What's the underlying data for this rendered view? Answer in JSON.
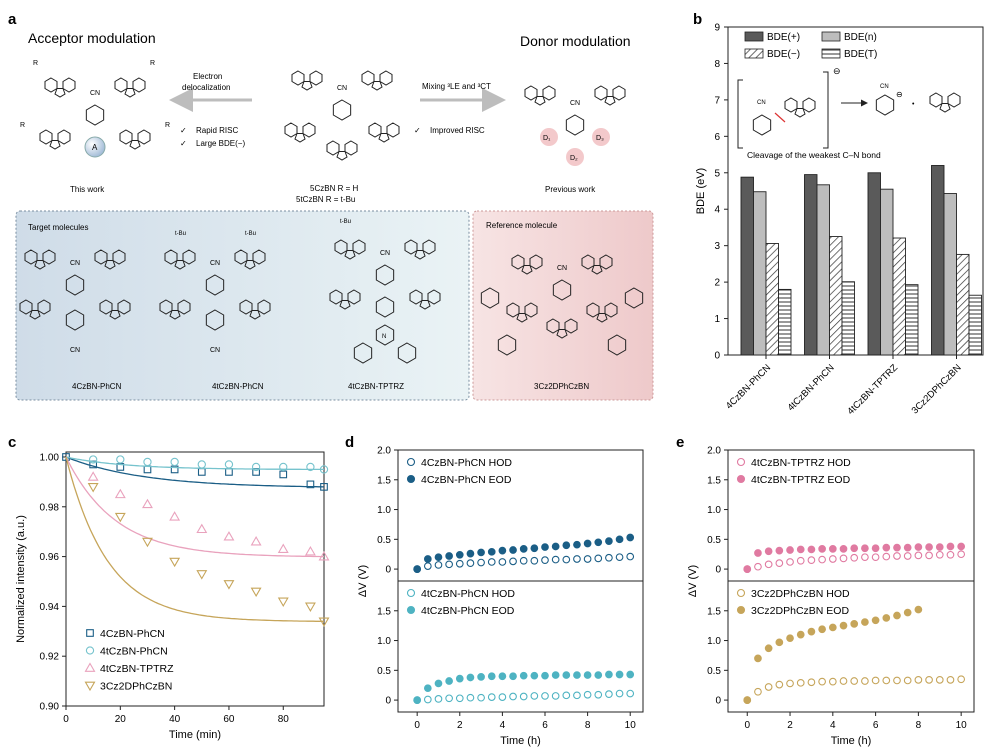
{
  "colors": {
    "blue": "#1b5e86",
    "cyan": "#4eb3c2",
    "pink": "#e07aa1",
    "gold": "#c6a55a",
    "dark": "#5a5a5a",
    "mid": "#bdbdbd",
    "targetBg": "#e4ecf2",
    "refBg": "#f4d9da",
    "pinkCircle": "#f3c9cb",
    "lightCyan": "#76c3cd",
    "lightPink": "#e9a2bd"
  },
  "panel_a": {
    "label": "a",
    "acceptor_title": "Acceptor modulation",
    "donor_title": "Donor modulation",
    "arrow_left_text": [
      "Electron",
      "delocalization"
    ],
    "arrow_right_text": "Mixing ³LE and ³CT",
    "left_bullets": [
      "Rapid RISC",
      "Large BDE(−)"
    ],
    "right_bullets": [
      "Improved RISC"
    ],
    "check": "✓",
    "this_work": "This work",
    "previous_work": "Previous work",
    "center_name1": "5CzBN  R = H",
    "center_name2": "5tCzBN R = t-Bu",
    "acceptor_label": "A",
    "donor_labels": [
      "D₁",
      "D₂",
      "D₃"
    ],
    "group_cn": "CN",
    "group_r": "R",
    "group_n": "N",
    "group_tbu": "t-Bu",
    "target_title": "Target molecules",
    "reference_title": "Reference molecule",
    "molecules": [
      "4CzBN-PhCN",
      "4tCzBN-PhCN",
      "4tCzBN-TPTRZ",
      "3Cz2DPhCzBN"
    ]
  },
  "panel_b": {
    "label": "b",
    "inset_caption": "Cleavage of the weakest C–N bond",
    "minus_sign": "⊖",
    "plus_sign": "•"
  },
  "panel_c": {
    "label": "c"
  },
  "panel_d": {
    "label": "d"
  },
  "panel_e": {
    "label": "e"
  },
  "chart_data": [
    {
      "panel": "b",
      "type": "bar",
      "ylabel": "BDE (eV)",
      "ylim": [
        0,
        9
      ],
      "yticks": [
        0,
        1,
        2,
        3,
        4,
        5,
        6,
        7,
        8,
        9
      ],
      "categories": [
        "4CzBN-PhCN",
        "4tCzBN-PhCN",
        "4tCzBN-TPTRZ",
        "3Cz2DPhCzBN"
      ],
      "series": [
        {
          "name": "BDE(+)",
          "values": [
            4.88,
            4.95,
            5.0,
            5.2
          ]
        },
        {
          "name": "BDE(n)",
          "values": [
            4.48,
            4.67,
            4.55,
            4.43
          ]
        },
        {
          "name": "BDE(−)",
          "values": [
            3.06,
            3.25,
            3.21,
            2.76
          ]
        },
        {
          "name": "BDE(T)",
          "values": [
            1.8,
            2.01,
            1.93,
            1.64
          ]
        }
      ],
      "legend": "top"
    },
    {
      "panel": "c",
      "type": "scatter",
      "xlabel": "Time (min)",
      "ylabel": "Normalized intensity (a.u.)",
      "xlim": [
        0,
        95
      ],
      "ylim": [
        0.9,
        1.002
      ],
      "xticks": [
        0,
        20,
        40,
        60,
        80
      ],
      "yticks": [
        0.9,
        0.92,
        0.94,
        0.96,
        0.98,
        1.0
      ],
      "ytick_labels": [
        "0.90",
        "0.92",
        "0.94",
        "0.96",
        "0.98",
        "1.00"
      ],
      "x": [
        0,
        10,
        20,
        30,
        40,
        50,
        60,
        70,
        80,
        90,
        95
      ],
      "series": [
        {
          "name": "4CzBN-PhCN",
          "marker": "square",
          "values": [
            1.0,
            0.997,
            0.996,
            0.995,
            0.995,
            0.994,
            0.994,
            0.994,
            0.993,
            0.989,
            0.988
          ]
        },
        {
          "name": "4tCzBN-PhCN",
          "marker": "circle",
          "values": [
            1.0,
            0.999,
            0.999,
            0.998,
            0.998,
            0.997,
            0.997,
            0.996,
            0.996,
            0.996,
            0.995
          ]
        },
        {
          "name": "4tCzBN-TPTRZ",
          "marker": "triangle-up",
          "values": [
            1.0,
            0.992,
            0.985,
            0.981,
            0.976,
            0.971,
            0.968,
            0.966,
            0.963,
            0.962,
            0.96
          ]
        },
        {
          "name": "3Cz2DPhCzBN",
          "marker": "triangle-down",
          "values": [
            1.0,
            0.988,
            0.976,
            0.966,
            0.958,
            0.953,
            0.949,
            0.946,
            0.942,
            0.94,
            0.934
          ]
        }
      ]
    },
    {
      "panel": "d",
      "type": "scatter",
      "xlabel": "Time (h)",
      "ylabel": "ΔV (V)",
      "subplots": [
        {
          "ylim": [
            -0.2,
            2.0
          ],
          "yticks": [
            0,
            0.5,
            1.0,
            1.5,
            2.0
          ],
          "ytick_labels": [
            "0",
            "0.5",
            "1.0",
            "1.5",
            "2.0"
          ],
          "series": [
            {
              "name": "4CzBN-PhCN HOD",
              "filled": false,
              "x": [
                0,
                0.5,
                1,
                1.5,
                2,
                2.5,
                3,
                3.5,
                4,
                4.5,
                5,
                5.5,
                6,
                6.5,
                7,
                7.5,
                8,
                8.5,
                9,
                9.5,
                10
              ],
              "values": [
                0,
                0.05,
                0.07,
                0.08,
                0.09,
                0.1,
                0.11,
                0.12,
                0.12,
                0.13,
                0.14,
                0.14,
                0.15,
                0.16,
                0.16,
                0.17,
                0.17,
                0.18,
                0.19,
                0.2,
                0.21
              ]
            },
            {
              "name": "4CzBN-PhCN EOD",
              "filled": true,
              "x": [
                0,
                0.5,
                1,
                1.5,
                2,
                2.5,
                3,
                3.5,
                4,
                4.5,
                5,
                5.5,
                6,
                6.5,
                7,
                7.5,
                8,
                8.5,
                9,
                9.5,
                10
              ],
              "values": [
                0,
                0.17,
                0.2,
                0.22,
                0.24,
                0.26,
                0.28,
                0.29,
                0.31,
                0.32,
                0.34,
                0.35,
                0.37,
                0.38,
                0.4,
                0.41,
                0.43,
                0.45,
                0.47,
                0.5,
                0.53
              ]
            }
          ]
        },
        {
          "ylim": [
            -0.2,
            2.0
          ],
          "yticks": [
            0,
            0.5,
            1.0,
            1.5
          ],
          "ytick_labels": [
            "0",
            "0.5",
            "1.0",
            "1.5"
          ],
          "series": [
            {
              "name": "4tCzBN-PhCN HOD",
              "filled": false,
              "x": [
                0,
                0.5,
                1,
                1.5,
                2,
                2.5,
                3,
                3.5,
                4,
                4.5,
                5,
                5.5,
                6,
                6.5,
                7,
                7.5,
                8,
                8.5,
                9,
                9.5,
                10
              ],
              "values": [
                0,
                0.01,
                0.02,
                0.03,
                0.03,
                0.04,
                0.04,
                0.05,
                0.05,
                0.06,
                0.06,
                0.07,
                0.07,
                0.07,
                0.08,
                0.08,
                0.09,
                0.09,
                0.1,
                0.11,
                0.11
              ]
            },
            {
              "name": "4tCzBN-PhCN EOD",
              "filled": true,
              "x": [
                0,
                0.5,
                1,
                1.5,
                2,
                2.5,
                3,
                3.5,
                4,
                4.5,
                5,
                5.5,
                6,
                6.5,
                7,
                7.5,
                8,
                8.5,
                9,
                9.5,
                10
              ],
              "values": [
                0,
                0.2,
                0.28,
                0.32,
                0.36,
                0.38,
                0.39,
                0.4,
                0.4,
                0.4,
                0.41,
                0.41,
                0.41,
                0.42,
                0.42,
                0.42,
                0.42,
                0.42,
                0.43,
                0.43,
                0.43
              ]
            }
          ]
        }
      ],
      "xlim": [
        -0.9,
        10.6
      ],
      "xticks": [
        0,
        2,
        4,
        6,
        8,
        10
      ]
    },
    {
      "panel": "e",
      "type": "scatter",
      "xlabel": "Time (h)",
      "ylabel": "ΔV (V)",
      "subplots": [
        {
          "ylim": [
            -0.2,
            2.0
          ],
          "yticks": [
            0,
            0.5,
            1.0,
            1.5,
            2.0
          ],
          "ytick_labels": [
            "0",
            "0.5",
            "1.0",
            "1.5",
            "2.0"
          ],
          "series": [
            {
              "name": "4tCzBN-TPTRZ HOD",
              "filled": false,
              "x": [
                0,
                0.5,
                1,
                1.5,
                2,
                2.5,
                3,
                3.5,
                4,
                4.5,
                5,
                5.5,
                6,
                6.5,
                7,
                7.5,
                8,
                8.5,
                9,
                9.5,
                10
              ],
              "values": [
                0,
                0.04,
                0.08,
                0.1,
                0.12,
                0.14,
                0.15,
                0.16,
                0.17,
                0.18,
                0.19,
                0.2,
                0.2,
                0.21,
                0.22,
                0.22,
                0.23,
                0.23,
                0.24,
                0.24,
                0.25
              ]
            },
            {
              "name": "4tCzBN-TPTRZ EOD",
              "filled": true,
              "x": [
                0,
                0.5,
                1,
                1.5,
                2,
                2.5,
                3,
                3.5,
                4,
                4.5,
                5,
                5.5,
                6,
                6.5,
                7,
                7.5,
                8,
                8.5,
                9,
                9.5,
                10
              ],
              "values": [
                0,
                0.27,
                0.3,
                0.31,
                0.32,
                0.33,
                0.33,
                0.34,
                0.34,
                0.34,
                0.35,
                0.35,
                0.35,
                0.36,
                0.36,
                0.36,
                0.37,
                0.37,
                0.37,
                0.38,
                0.38
              ]
            }
          ]
        },
        {
          "ylim": [
            -0.2,
            2.0
          ],
          "yticks": [
            0,
            0.5,
            1.0,
            1.5
          ],
          "ytick_labels": [
            "0",
            "0.5",
            "1.0",
            "1.5"
          ],
          "series": [
            {
              "name": "3Cz2DPhCzBN HOD",
              "filled": false,
              "x": [
                0,
                0.5,
                1,
                1.5,
                2,
                2.5,
                3,
                3.5,
                4,
                4.5,
                5,
                5.5,
                6,
                6.5,
                7,
                7.5,
                8,
                8.5,
                9,
                9.5,
                10
              ],
              "values": [
                0,
                0.14,
                0.22,
                0.26,
                0.28,
                0.29,
                0.3,
                0.31,
                0.31,
                0.32,
                0.32,
                0.32,
                0.33,
                0.33,
                0.33,
                0.33,
                0.34,
                0.34,
                0.34,
                0.34,
                0.35
              ]
            },
            {
              "name": "3Cz2DPhCzBN EOD",
              "filled": true,
              "x": [
                0,
                0.5,
                1,
                1.5,
                2,
                2.5,
                3,
                3.5,
                4,
                4.5,
                5,
                5.5,
                6,
                6.5,
                7,
                7.5,
                8
              ],
              "values": [
                0,
                0.7,
                0.87,
                0.97,
                1.04,
                1.1,
                1.15,
                1.19,
                1.22,
                1.25,
                1.28,
                1.31,
                1.34,
                1.38,
                1.42,
                1.47,
                1.52
              ]
            }
          ]
        }
      ],
      "xlim": [
        -0.9,
        10.6
      ],
      "xticks": [
        0,
        2,
        4,
        6,
        8,
        10
      ]
    }
  ]
}
